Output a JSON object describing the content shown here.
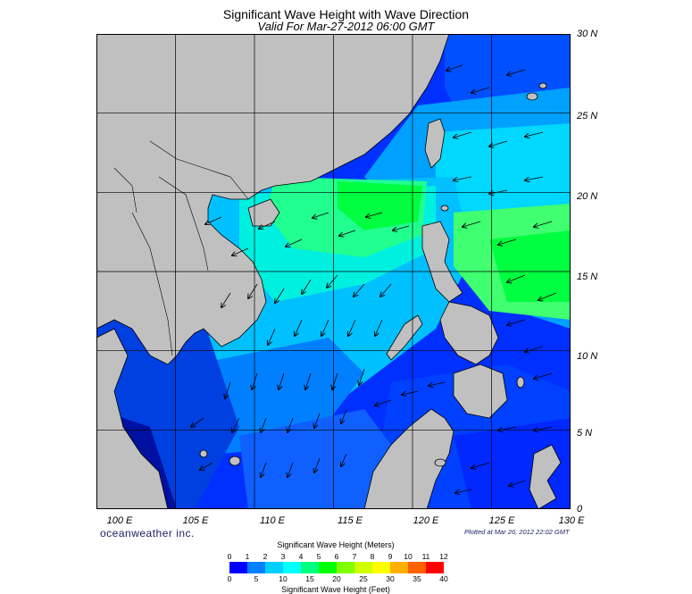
{
  "title": "Significant Wave Height with Wave Direction",
  "subtitle": "Valid For Mar-27-2012 06:00 GMT",
  "brand": "oceanweather inc.",
  "plotted": "Plotted at Mar 26, 2012 22:02 GMT",
  "map": {
    "lon_range": [
      100,
      130
    ],
    "lat_range": [
      0,
      30
    ],
    "lon_labels": [
      "100 E",
      "105 E",
      "110 E",
      "115 E",
      "120 E",
      "125 E",
      "130 E"
    ],
    "lat_labels": [
      "30 N",
      "25 N",
      "20 N",
      "15 N",
      "10 N",
      "5 N",
      "0"
    ],
    "land_color": "#c0c0c0",
    "ocean_colors": [
      "#0000ff",
      "#00c0ff",
      "#00ff80",
      "#00ffff"
    ],
    "wave_direction": "southwest"
  },
  "legend": {
    "meters_title": "Significant Wave Height (Meters)",
    "feet_title": "Significant Wave Height (Feet)",
    "meters_ticks": [
      "0",
      "1",
      "2",
      "3",
      "4",
      "5",
      "6",
      "7",
      "8",
      "9",
      "10",
      "11",
      "12"
    ],
    "feet_ticks": [
      "0",
      "5",
      "10",
      "15",
      "20",
      "25",
      "30",
      "35",
      "40"
    ],
    "colors": [
      "#0000ff",
      "#0080ff",
      "#00d0ff",
      "#00ffff",
      "#00ff80",
      "#00ff00",
      "#80ff00",
      "#d0ff00",
      "#ffff00",
      "#ffb000",
      "#ff6000",
      "#ff0000"
    ]
  }
}
